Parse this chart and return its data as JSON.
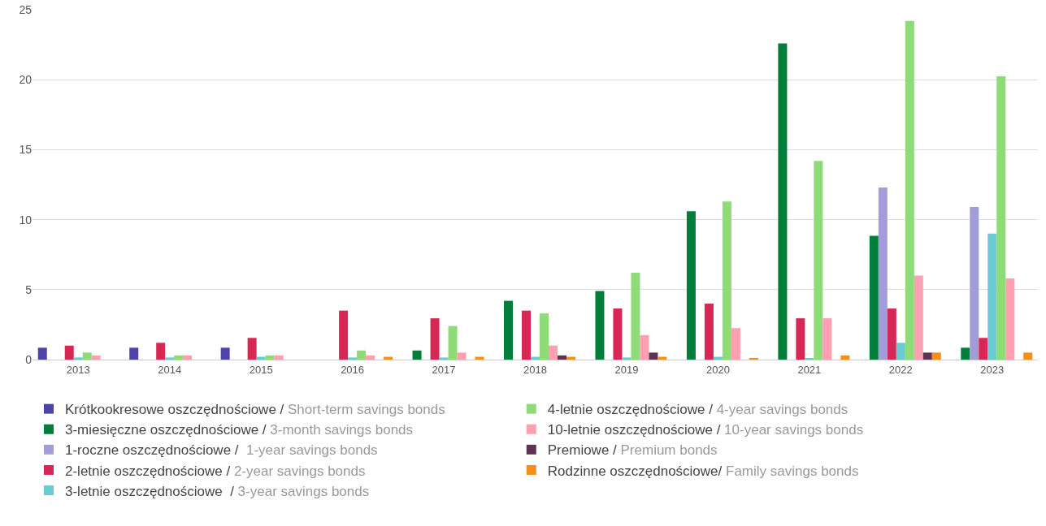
{
  "chart_data": {
    "type": "bar",
    "categories": [
      "2013",
      "2014",
      "2015",
      "2016",
      "2017",
      "2018",
      "2019",
      "2020",
      "2021",
      "2022",
      "2023"
    ],
    "series": [
      {
        "name": "Krótkookresowe oszczędnościowe / Short-term savings bonds",
        "color": "#4e43a8",
        "values": [
          0.85,
          0.85,
          0.85,
          null,
          null,
          null,
          null,
          null,
          null,
          null,
          null
        ]
      },
      {
        "name": "3-miesięczne oszczędnościowe / 3-month savings bonds",
        "color": "#007e3a",
        "values": [
          null,
          null,
          null,
          null,
          0.65,
          4.2,
          4.9,
          10.6,
          22.6,
          8.85,
          0.85
        ]
      },
      {
        "name": "1-roczne oszczędnościowe /  1-year savings bonds",
        "color": "#a29dd8",
        "values": [
          null,
          null,
          null,
          null,
          null,
          null,
          null,
          null,
          null,
          12.3,
          10.9
        ]
      },
      {
        "name": "2-letnie oszczędnościowe / 2-year savings bonds",
        "color": "#d62755",
        "values": [
          1.0,
          1.2,
          1.55,
          3.5,
          2.95,
          3.5,
          3.65,
          4.0,
          2.95,
          3.65,
          1.55
        ]
      },
      {
        "name": "3-letnie oszczędnościowe  / 3-year savings bonds",
        "color": "#6acbd2",
        "values": [
          0.15,
          0.15,
          0.2,
          0.15,
          0.15,
          0.2,
          0.15,
          0.2,
          0.1,
          1.2,
          9.0
        ]
      },
      {
        "name": "4-letnie oszczędnościowe / 4-year savings bonds",
        "color": "#8fdb77",
        "values": [
          0.5,
          0.3,
          0.3,
          0.65,
          2.4,
          3.3,
          6.2,
          11.3,
          14.2,
          24.2,
          20.25
        ]
      },
      {
        "name": "10-letnie oszczędnościowe / 10-year savings bonds",
        "color": "#ffa0b2",
        "values": [
          0.3,
          0.3,
          0.3,
          0.3,
          0.5,
          1.0,
          1.75,
          2.25,
          2.95,
          6.0,
          5.8
        ]
      },
      {
        "name": "Premiowe / Premium bonds",
        "color": "#5e3352",
        "values": [
          null,
          null,
          null,
          null,
          null,
          0.3,
          0.5,
          null,
          null,
          0.5,
          null
        ]
      },
      {
        "name": "Rodzinne oszczędnościowe/ Family savings bonds",
        "color": "#f39019",
        "values": [
          null,
          null,
          null,
          0.2,
          0.2,
          0.2,
          0.2,
          0.1,
          0.3,
          0.5,
          0.5
        ]
      }
    ],
    "ylim": [
      0,
      25
    ],
    "yticks": [
      0,
      5,
      10,
      15,
      20,
      25
    ],
    "grid": "y",
    "legend": "bottom"
  }
}
